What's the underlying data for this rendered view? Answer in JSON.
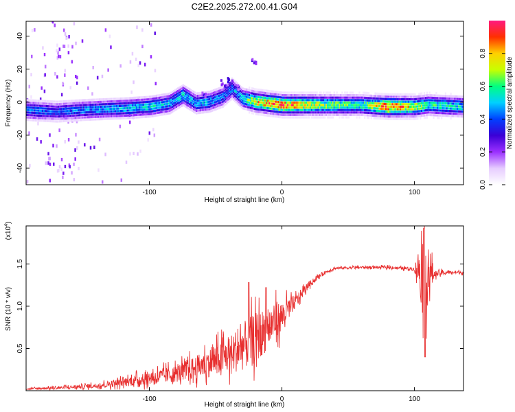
{
  "figure_title": "C2E2.2025.272.00.41.G04",
  "colors": {
    "snr_line": "#e83030",
    "axis": "#000000",
    "plot_bg": "#ffffff",
    "colormap": [
      "#ffffff",
      "#e6ccff",
      "#9b30ff",
      "#3b00d6",
      "#0040ff",
      "#00d0ff",
      "#00ff80",
      "#c8ff00",
      "#ffd000",
      "#ff3000",
      "#ff1a80"
    ]
  },
  "chart_data": [
    {
      "type": "heatmap",
      "panel": "spectrogram",
      "xlabel": "Height of straight line (km)",
      "ylabel": "Frequency (Hz)",
      "xlim": [
        -193,
        137
      ],
      "ylim": [
        -50,
        49
      ],
      "xticks": [
        -100,
        0,
        100
      ],
      "xtick_labels": [
        "-100",
        "0",
        "100"
      ],
      "yticks": [
        -40,
        -20,
        0,
        20,
        40
      ],
      "ytick_labels": [
        "-40",
        "-20",
        "0",
        "20",
        "40"
      ],
      "grid": false,
      "ridge": {
        "description": "dominant frequency track",
        "x": [
          -193,
          -170,
          -150,
          -120,
          -100,
          -85,
          -75,
          -65,
          -55,
          -45,
          -38,
          -30,
          -20,
          -10,
          0,
          30,
          60,
          80,
          100,
          110,
          137
        ],
        "y": [
          -5,
          -6,
          -5,
          -4,
          -3,
          -1,
          4,
          -1,
          0,
          3,
          8,
          2,
          0,
          -1,
          -2,
          -2,
          -2,
          -3,
          -3,
          -2,
          -3
        ],
        "amplitude": [
          0.45,
          0.4,
          0.45,
          0.5,
          0.55,
          0.5,
          0.55,
          0.5,
          0.5,
          0.45,
          0.45,
          0.55,
          0.8,
          0.9,
          0.95,
          0.7,
          0.6,
          0.95,
          0.75,
          0.6,
          0.55
        ]
      },
      "colorbar": {
        "label": "Normalized spectral amplitude",
        "ticks": [
          0.0,
          0.2,
          0.4,
          0.6,
          0.8
        ],
        "tick_labels": [
          "0.0",
          "0.2",
          "0.4",
          "0.6",
          "0.8"
        ],
        "range": [
          0,
          1
        ]
      }
    },
    {
      "type": "line",
      "panel": "snr",
      "series_name": "SNR",
      "xlabel": "Height of straight line (km)",
      "ylabel": "SNR (10 * v/v)",
      "y_multiplier_label": "(x10",
      "y_multiplier_exp": "4",
      "y_multiplier_close": ")",
      "xlim": [
        -193,
        137
      ],
      "ylim": [
        0,
        1.95
      ],
      "xticks": [
        -100,
        0,
        100
      ],
      "xtick_labels": [
        "-100",
        "0",
        "100"
      ],
      "yticks": [
        0.5,
        1.0,
        1.5
      ],
      "ytick_labels": [
        "0.5",
        "1.0",
        "1.5"
      ],
      "grid": false,
      "envelope": {
        "x": [
          -193,
          -160,
          -140,
          -120,
          -100,
          -80,
          -60,
          -40,
          -30,
          -20,
          -10,
          0,
          10,
          20,
          30,
          40,
          60,
          80,
          100,
          104,
          106,
          108,
          110,
          115,
          125,
          137
        ],
        "y": [
          0.02,
          0.04,
          0.06,
          0.1,
          0.15,
          0.2,
          0.3,
          0.42,
          0.52,
          0.62,
          0.75,
          0.88,
          1.05,
          1.25,
          1.38,
          1.45,
          1.46,
          1.46,
          1.44,
          1.45,
          1.4,
          1.42,
          1.4,
          1.38,
          1.4,
          1.4
        ],
        "noise": [
          0.01,
          0.02,
          0.03,
          0.05,
          0.08,
          0.1,
          0.15,
          0.22,
          0.28,
          0.3,
          0.25,
          0.18,
          0.08,
          0.04,
          0.02,
          0.015,
          0.015,
          0.015,
          0.02,
          0.3,
          0.5,
          0.5,
          0.4,
          0.04,
          0.02,
          0.02
        ]
      },
      "peaks": [
        {
          "x": -25,
          "y": 1.28
        },
        {
          "x": -12,
          "y": 1.22
        },
        {
          "x": 107,
          "y": 1.92
        },
        {
          "x": 108,
          "y": 0.4
        }
      ]
    }
  ]
}
